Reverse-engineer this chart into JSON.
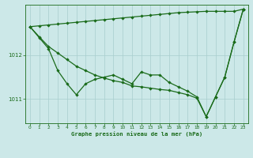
{
  "title": "Graphe pression niveau de la mer (hPa)",
  "bg_color": "#cce8e8",
  "line_color": "#1a6b1a",
  "grid_color": "#a8cece",
  "xlim": [
    -0.5,
    23.5
  ],
  "ylim": [
    1010.45,
    1013.15
  ],
  "yticks": [
    1011,
    1012
  ],
  "xticks": [
    0,
    1,
    2,
    3,
    4,
    5,
    6,
    7,
    8,
    9,
    10,
    11,
    12,
    13,
    14,
    15,
    16,
    17,
    18,
    19,
    20,
    21,
    22,
    23
  ],
  "y_A": [
    1012.65,
    1012.67,
    1012.69,
    1012.71,
    1012.73,
    1012.75,
    1012.77,
    1012.79,
    1012.81,
    1012.83,
    1012.85,
    1012.87,
    1012.89,
    1012.91,
    1012.93,
    1012.95,
    1012.97,
    1012.98,
    1012.99,
    1013.0,
    1013.0,
    1013.0,
    1013.0,
    1013.05
  ],
  "y_B": [
    1012.65,
    1012.4,
    1012.15,
    1011.65,
    1011.35,
    1011.1,
    1011.35,
    1011.45,
    1011.5,
    1011.55,
    1011.45,
    1011.35,
    1011.62,
    1011.55,
    1011.55,
    1011.38,
    1011.28,
    1011.18,
    1011.05,
    1010.6,
    1011.05,
    1011.5,
    1012.3,
    1013.05
  ],
  "y_C": [
    1012.65,
    1012.42,
    1012.2,
    1012.05,
    1011.9,
    1011.75,
    1011.65,
    1011.55,
    1011.48,
    1011.42,
    1011.38,
    1011.3,
    1011.28,
    1011.25,
    1011.22,
    1011.2,
    1011.15,
    1011.1,
    1011.02,
    1010.6,
    1011.05,
    1011.5,
    1012.3,
    1013.05
  ]
}
